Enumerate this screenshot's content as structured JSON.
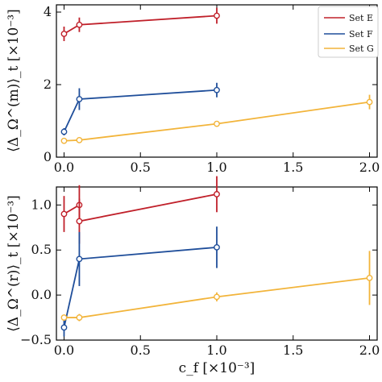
{
  "chart_data": [
    {
      "type": "line",
      "panel": "top",
      "ylabel": "⟨Δ_Ω^(m)⟩_t [×10⁻³]",
      "xlabel": "",
      "xlim": [
        -0.05,
        2.05
      ],
      "ylim": [
        0,
        4.2
      ],
      "xticks": [
        0.0,
        0.5,
        1.0,
        1.5,
        2.0
      ],
      "xtick_labels": [
        "0.0",
        "0.5",
        "1.0",
        "1.5",
        "2.0"
      ],
      "yticks": [
        0,
        2,
        4
      ],
      "ytick_labels": [
        "0",
        "2",
        "4"
      ],
      "series": [
        {
          "name": "Set E",
          "color": "#c0202a",
          "x": [
            0.0,
            0.1,
            1.0
          ],
          "y": [
            3.4,
            3.65,
            3.9
          ],
          "err": [
            0.2,
            0.2,
            0.22
          ]
        },
        {
          "name": "Set F",
          "color": "#1f4e9a",
          "x": [
            0.0,
            0.1,
            1.0
          ],
          "y": [
            0.7,
            1.6,
            1.85
          ],
          "err": [
            0.1,
            0.3,
            0.2
          ]
        },
        {
          "name": "Set G",
          "color": "#f2b43a",
          "x": [
            0.0,
            0.1,
            1.0,
            2.0
          ],
          "y": [
            0.45,
            0.47,
            0.92,
            1.52
          ],
          "err": [
            0.05,
            0.05,
            0.05,
            0.2
          ]
        }
      ],
      "legend": {
        "position": "top-right",
        "entries": [
          "Set E",
          "Set F",
          "Set G"
        ]
      }
    },
    {
      "type": "line",
      "panel": "bottom",
      "ylabel": "⟨Δ_Ω^(r)⟩_t [×10⁻³]",
      "xlabel": "c_f [×10⁻³]",
      "xlim": [
        -0.05,
        2.05
      ],
      "ylim": [
        -0.5,
        1.2
      ],
      "xticks": [
        0.0,
        0.5,
        1.0,
        1.5,
        2.0
      ],
      "xtick_labels": [
        "0.0",
        "0.5",
        "1.0",
        "1.5",
        "2.0"
      ],
      "yticks": [
        -0.5,
        0.0,
        0.5,
        1.0
      ],
      "ytick_labels": [
        "−0.5",
        "0.0",
        "0.5",
        "1.0"
      ],
      "series": [
        {
          "name": "Set E",
          "color": "#c0202a",
          "x": [
            0.0,
            0.1,
            0.1,
            1.0
          ],
          "y": [
            0.9,
            1.0,
            0.82,
            1.12
          ],
          "err": [
            0.2,
            0.22,
            0.25,
            0.2
          ]
        },
        {
          "name": "Set F",
          "color": "#1f4e9a",
          "x": [
            0.0,
            0.1,
            1.0
          ],
          "y": [
            -0.36,
            0.4,
            0.53
          ],
          "err": [
            0.1,
            0.3,
            0.23
          ]
        },
        {
          "name": "Set G",
          "color": "#f2b43a",
          "x": [
            0.0,
            0.1,
            1.0,
            2.0
          ],
          "y": [
            -0.25,
            -0.25,
            -0.02,
            0.19
          ],
          "err": [
            0.03,
            0.04,
            0.05,
            0.3
          ]
        }
      ]
    }
  ]
}
